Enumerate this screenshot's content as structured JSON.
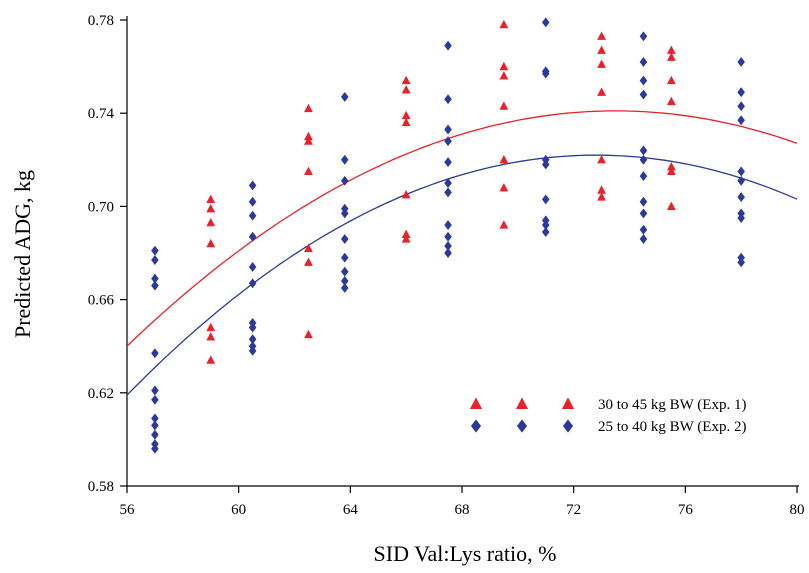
{
  "chart_data": {
    "type": "scatter",
    "title": "",
    "xlabel": "SID Val:Lys ratio, %",
    "ylabel": "Predicted ADG, kg",
    "xlim": [
      56,
      80
    ],
    "ylim": [
      0.58,
      0.78
    ],
    "x_ticks": [
      56,
      60,
      64,
      68,
      72,
      76,
      80
    ],
    "x_tick_labels": [
      "56",
      "60",
      "64",
      "68",
      "72",
      "76",
      "80"
    ],
    "y_ticks": [
      0.58,
      0.62,
      0.66,
      0.7,
      0.74,
      0.78
    ],
    "y_tick_labels": [
      "0.58",
      "0.62",
      "0.66",
      "0.70",
      "0.74",
      "0.78"
    ],
    "grid": false,
    "legend_position": "bottom-right",
    "series": [
      {
        "name": "30 to 45 kg BW (Exp. 1)",
        "color": "#e8212b",
        "marker": "triangle",
        "points": [
          [
            59,
            0.703
          ],
          [
            59,
            0.699
          ],
          [
            59,
            0.693
          ],
          [
            59,
            0.684
          ],
          [
            59,
            0.648
          ],
          [
            59,
            0.644
          ],
          [
            59,
            0.634
          ],
          [
            62.5,
            0.742
          ],
          [
            62.5,
            0.73
          ],
          [
            62.5,
            0.728
          ],
          [
            62.5,
            0.715
          ],
          [
            62.5,
            0.682
          ],
          [
            62.5,
            0.676
          ],
          [
            62.5,
            0.645
          ],
          [
            66,
            0.754
          ],
          [
            66,
            0.75
          ],
          [
            66,
            0.739
          ],
          [
            66,
            0.736
          ],
          [
            66,
            0.705
          ],
          [
            66,
            0.688
          ],
          [
            66,
            0.686
          ],
          [
            69.5,
            0.778
          ],
          [
            69.5,
            0.76
          ],
          [
            69.5,
            0.756
          ],
          [
            69.5,
            0.743
          ],
          [
            69.5,
            0.72
          ],
          [
            69.5,
            0.708
          ],
          [
            69.5,
            0.692
          ],
          [
            73,
            0.773
          ],
          [
            73,
            0.767
          ],
          [
            73,
            0.761
          ],
          [
            73,
            0.749
          ],
          [
            73,
            0.72
          ],
          [
            73,
            0.707
          ],
          [
            73,
            0.704
          ],
          [
            75.5,
            0.767
          ],
          [
            75.5,
            0.764
          ],
          [
            75.5,
            0.754
          ],
          [
            75.5,
            0.745
          ],
          [
            75.5,
            0.717
          ],
          [
            75.5,
            0.715
          ],
          [
            75.5,
            0.7
          ]
        ],
        "fit_curve": {
          "peak_x": 73.5,
          "peak_y": 0.741,
          "y_at_56": 0.64,
          "y_at_80": 0.723
        }
      },
      {
        "name": "25 to 40 kg BW (Exp. 2)",
        "color": "#2b3a9a",
        "marker": "diamond",
        "points": [
          [
            57,
            0.681
          ],
          [
            57,
            0.677
          ],
          [
            57,
            0.669
          ],
          [
            57,
            0.666
          ],
          [
            57,
            0.637
          ],
          [
            57,
            0.621
          ],
          [
            57,
            0.617
          ],
          [
            57,
            0.609
          ],
          [
            57,
            0.606
          ],
          [
            57,
            0.602
          ],
          [
            57,
            0.598
          ],
          [
            57,
            0.596
          ],
          [
            60.5,
            0.709
          ],
          [
            60.5,
            0.702
          ],
          [
            60.5,
            0.696
          ],
          [
            60.5,
            0.687
          ],
          [
            60.5,
            0.674
          ],
          [
            60.5,
            0.667
          ],
          [
            60.5,
            0.65
          ],
          [
            60.5,
            0.648
          ],
          [
            60.5,
            0.643
          ],
          [
            60.5,
            0.64
          ],
          [
            60.5,
            0.638
          ],
          [
            63.8,
            0.747
          ],
          [
            63.8,
            0.72
          ],
          [
            63.8,
            0.711
          ],
          [
            63.8,
            0.699
          ],
          [
            63.8,
            0.697
          ],
          [
            63.8,
            0.686
          ],
          [
            63.8,
            0.678
          ],
          [
            63.8,
            0.672
          ],
          [
            63.8,
            0.668
          ],
          [
            63.8,
            0.665
          ],
          [
            67.5,
            0.769
          ],
          [
            67.5,
            0.746
          ],
          [
            67.5,
            0.733
          ],
          [
            67.5,
            0.728
          ],
          [
            67.5,
            0.719
          ],
          [
            67.5,
            0.71
          ],
          [
            67.5,
            0.706
          ],
          [
            67.5,
            0.692
          ],
          [
            67.5,
            0.687
          ],
          [
            67.5,
            0.683
          ],
          [
            67.5,
            0.68
          ],
          [
            71,
            0.779
          ],
          [
            71,
            0.758
          ],
          [
            71,
            0.757
          ],
          [
            71,
            0.72
          ],
          [
            71,
            0.718
          ],
          [
            71,
            0.703
          ],
          [
            71,
            0.694
          ],
          [
            71,
            0.692
          ],
          [
            71,
            0.689
          ],
          [
            74.5,
            0.773
          ],
          [
            74.5,
            0.762
          ],
          [
            74.5,
            0.754
          ],
          [
            74.5,
            0.748
          ],
          [
            74.5,
            0.724
          ],
          [
            74.5,
            0.72
          ],
          [
            74.5,
            0.713
          ],
          [
            74.5,
            0.702
          ],
          [
            74.5,
            0.697
          ],
          [
            74.5,
            0.69
          ],
          [
            74.5,
            0.686
          ],
          [
            78,
            0.762
          ],
          [
            78,
            0.749
          ],
          [
            78,
            0.743
          ],
          [
            78,
            0.737
          ],
          [
            78,
            0.715
          ],
          [
            78,
            0.711
          ],
          [
            78,
            0.704
          ],
          [
            78,
            0.697
          ],
          [
            78,
            0.695
          ],
          [
            78,
            0.678
          ],
          [
            78,
            0.676
          ]
        ],
        "fit_curve": {
          "peak_x": 72.8,
          "peak_y": 0.722,
          "y_at_56": 0.619,
          "y_at_80": 0.702
        }
      }
    ]
  }
}
